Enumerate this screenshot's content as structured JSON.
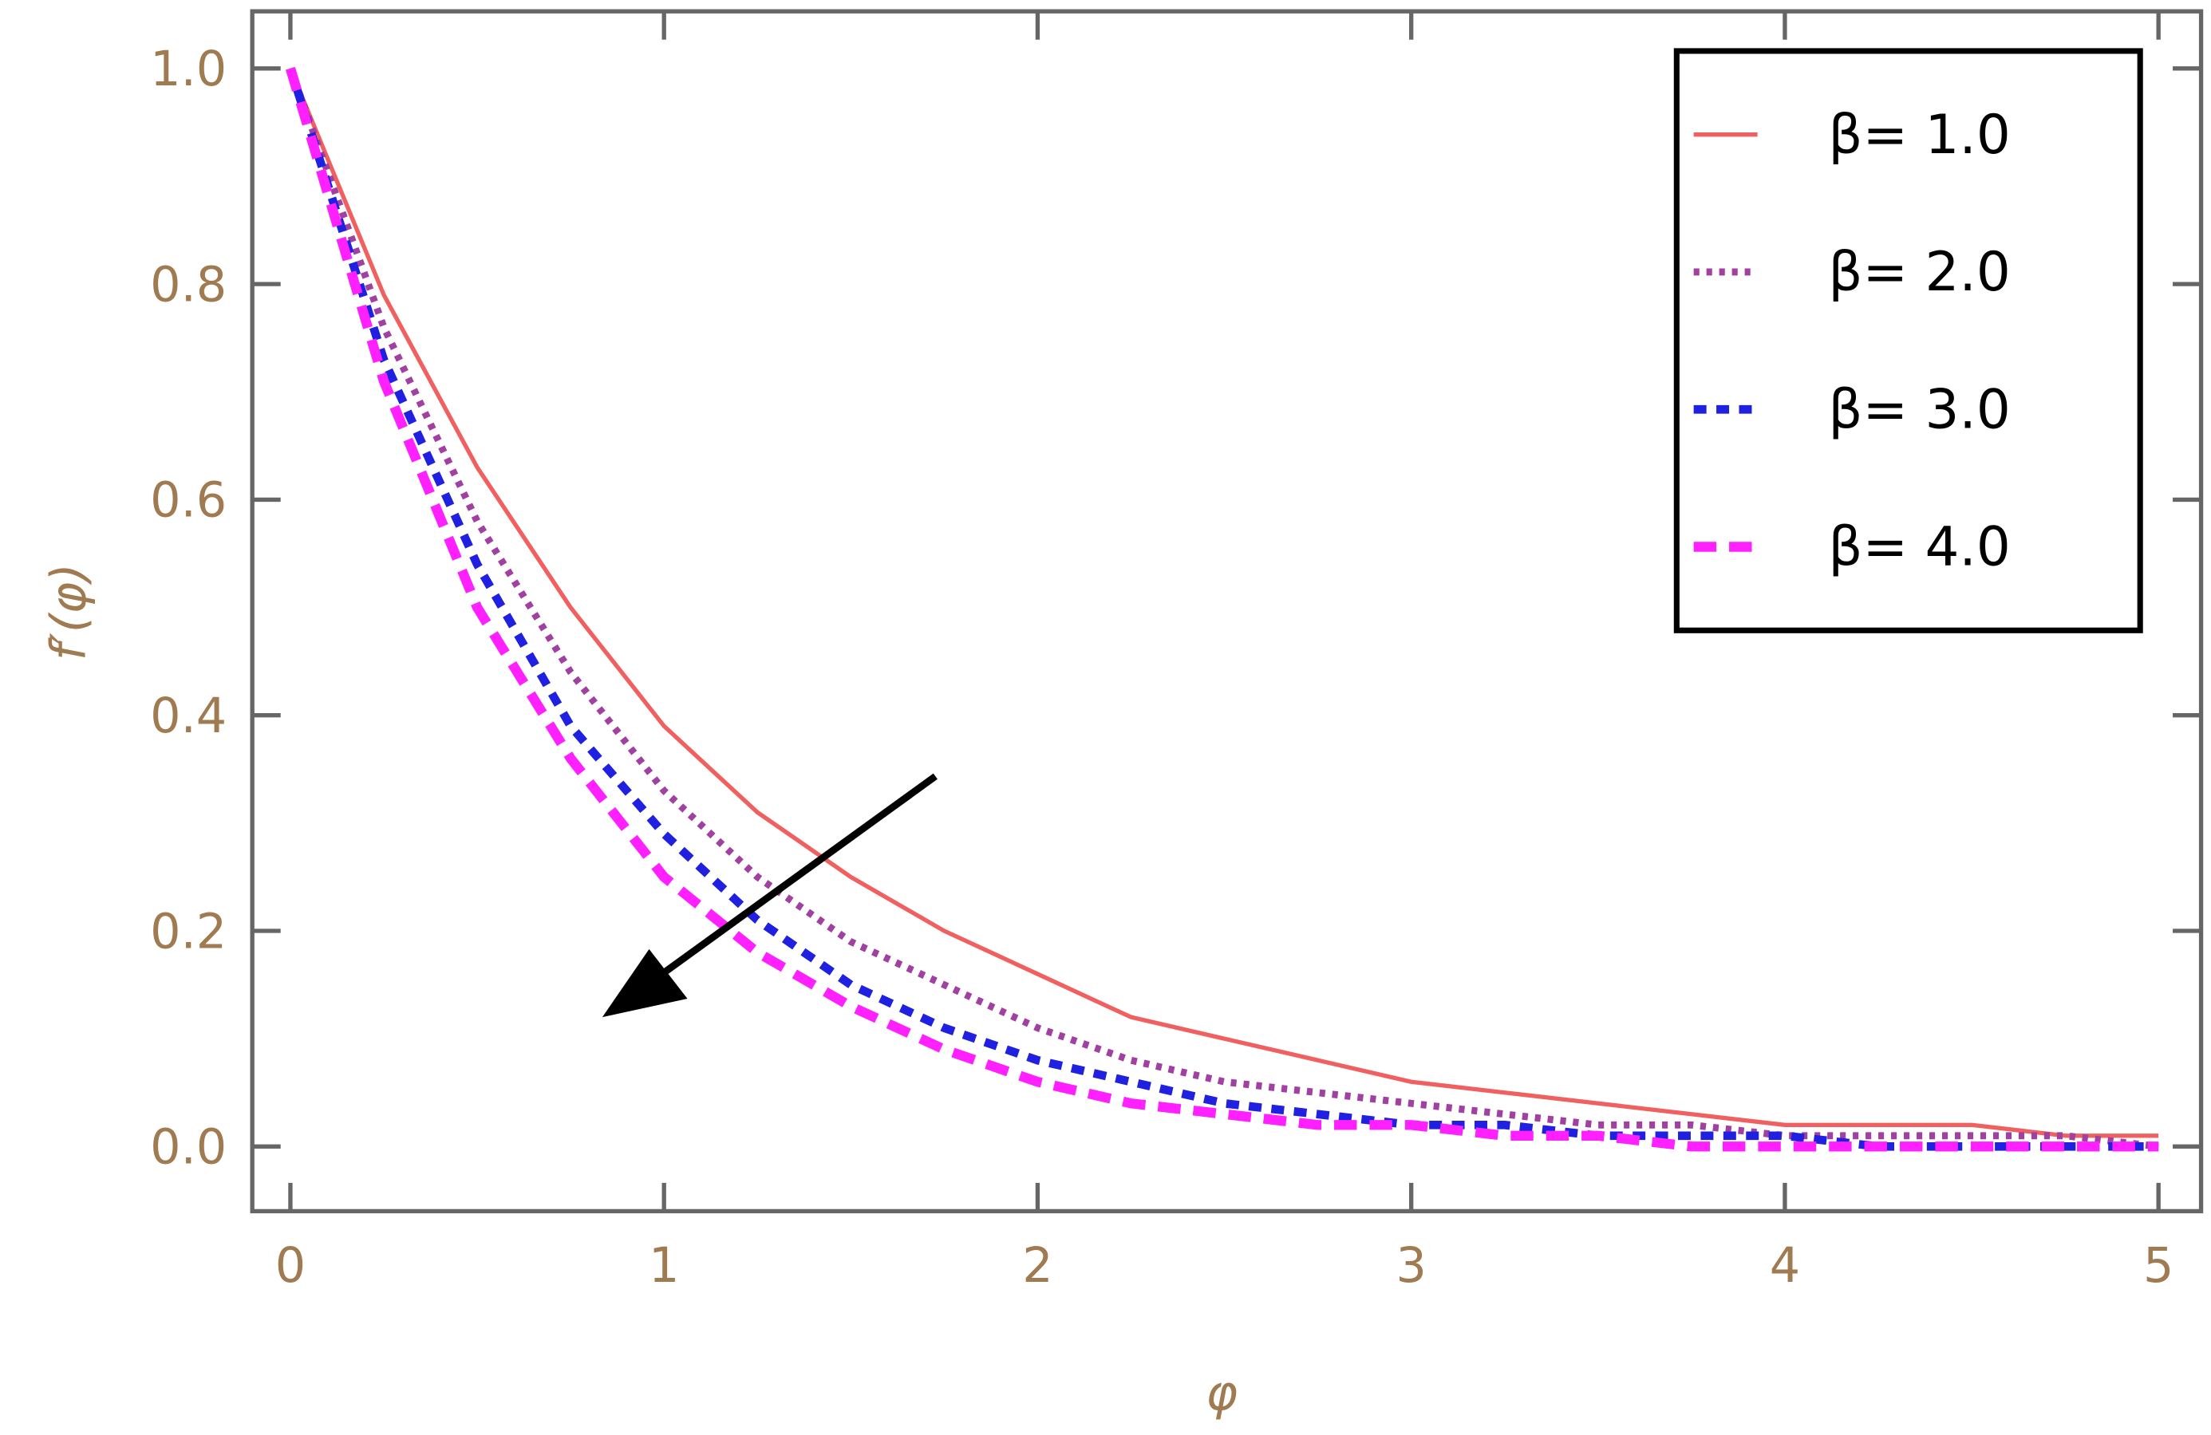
{
  "chart_data": {
    "type": "line",
    "xlabel": "φ",
    "ylabel": "f′(φ)",
    "x": [
      0,
      0.25,
      0.5,
      0.75,
      1,
      1.25,
      1.5,
      1.75,
      2,
      2.25,
      2.5,
      2.75,
      3,
      3.25,
      3.5,
      3.75,
      4,
      4.25,
      4.5,
      4.75,
      5
    ],
    "series": [
      {
        "name": "β= 1.0",
        "color": "#f06060",
        "dash": "solid",
        "values": [
          1.0,
          0.79,
          0.63,
          0.5,
          0.39,
          0.31,
          0.25,
          0.2,
          0.16,
          0.12,
          0.1,
          0.08,
          0.06,
          0.05,
          0.04,
          0.03,
          0.02,
          0.02,
          0.02,
          0.01,
          0.01
        ]
      },
      {
        "name": "β= 2.0",
        "color": "#a040a0",
        "dash": "dotted",
        "values": [
          1.0,
          0.76,
          0.58,
          0.44,
          0.33,
          0.25,
          0.19,
          0.15,
          0.11,
          0.08,
          0.06,
          0.05,
          0.04,
          0.03,
          0.02,
          0.02,
          0.01,
          0.01,
          0.01,
          0.01,
          0.0
        ]
      },
      {
        "name": "β= 3.0",
        "color": "#2020e0",
        "dash": "dashed",
        "values": [
          1.0,
          0.73,
          0.54,
          0.39,
          0.29,
          0.21,
          0.15,
          0.11,
          0.08,
          0.06,
          0.04,
          0.03,
          0.02,
          0.02,
          0.01,
          0.01,
          0.01,
          0.0,
          0.0,
          0.0,
          0.0
        ]
      },
      {
        "name": "β= 4.0",
        "color": "#ff20ff",
        "dash": "longdash",
        "values": [
          1.0,
          0.71,
          0.5,
          0.36,
          0.25,
          0.18,
          0.13,
          0.09,
          0.06,
          0.04,
          0.03,
          0.02,
          0.02,
          0.01,
          0.01,
          0.0,
          0.0,
          0.0,
          0.0,
          0.0,
          0.0
        ]
      }
    ],
    "xlim": [
      -0.102,
      5.114
    ],
    "ylim": [
      -0.06,
      1.053
    ],
    "xticks": [
      0,
      1,
      2,
      3,
      4,
      5
    ],
    "yticks": [
      {
        "value": 0,
        "label": "0.0"
      },
      {
        "value": 0.2,
        "label": "0.2"
      },
      {
        "value": 0.4,
        "label": "0.4"
      },
      {
        "value": 0.6,
        "label": "0.6"
      },
      {
        "value": 0.8,
        "label": "0.8"
      },
      {
        "value": 1.0,
        "label": "1.0"
      }
    ],
    "legend": "upper right"
  }
}
